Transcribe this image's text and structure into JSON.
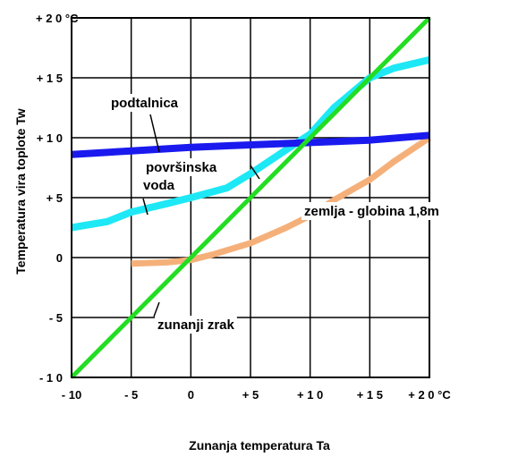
{
  "chart_data": {
    "type": "line",
    "xlabel": "Zunanja temperatura Ta",
    "ylabel": "Temperatura vira toplote Tw",
    "xlim": [
      -10,
      20
    ],
    "ylim": [
      -10,
      20
    ],
    "x_ticks": [
      -10,
      -5,
      0,
      5,
      10,
      15,
      20
    ],
    "y_ticks": [
      -10,
      -5,
      0,
      5,
      10,
      15,
      20
    ],
    "x_tick_labels": [
      "- 10",
      "- 5",
      "0",
      "+ 5",
      "+ 1 0",
      "+ 1 5",
      "+ 2 0 °C"
    ],
    "y_tick_labels": [
      "- 1 0",
      "- 5",
      "0",
      "+ 5",
      "+ 1 0",
      "+ 1 5",
      "+ 2 0 °C"
    ],
    "grid": true,
    "series": [
      {
        "name": "podtalnica",
        "color": "#1a1aee",
        "x": [
          -10,
          -5,
          0,
          5,
          10,
          15,
          20
        ],
        "y": [
          8.6,
          8.9,
          9.2,
          9.4,
          9.6,
          9.8,
          10.2
        ]
      },
      {
        "name": "površinska voda",
        "color": "#1ee8f5",
        "x": [
          -10,
          -7,
          -5,
          -2,
          0,
          3,
          5,
          8,
          10,
          12,
          15,
          17,
          20
        ],
        "y": [
          2.5,
          3,
          3.8,
          4.5,
          5,
          5.8,
          7,
          9,
          10.3,
          12.5,
          15,
          15.8,
          16.5
        ]
      },
      {
        "name": "zemlja - globina 1,8m",
        "color": "#f5b07a",
        "x": [
          -5,
          -2,
          0,
          2,
          5,
          8,
          10,
          12,
          15,
          17,
          20
        ],
        "y": [
          -0.5,
          -0.4,
          -0.2,
          0.3,
          1.2,
          2.5,
          3.5,
          4.8,
          6.5,
          8,
          10
        ]
      },
      {
        "name": "zunanji zrak",
        "color": "#22dd22",
        "x": [
          -10,
          20
        ],
        "y": [
          -10,
          20
        ]
      }
    ],
    "annotations": [
      {
        "text": "podtalnica",
        "series": 0
      },
      {
        "text": "površinska",
        "series": 1
      },
      {
        "text": "voda",
        "series": 1
      },
      {
        "text": "zemlja - globina 1,8m",
        "series": 2
      },
      {
        "text": "zunanji zrak",
        "series": 3
      }
    ]
  }
}
